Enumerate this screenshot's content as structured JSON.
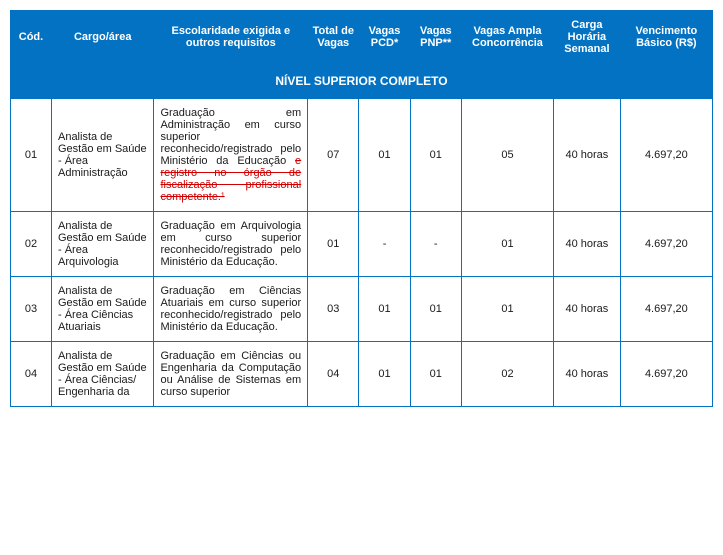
{
  "header_bg": "#0472c2",
  "header_color": "#ffffff",
  "border_color": "#0472c2",
  "strike_color": "#d00000",
  "columns": [
    {
      "label": "Cód.",
      "width": 40
    },
    {
      "label": "Cargo/área",
      "width": 100
    },
    {
      "label": "Escolaridade exigida e outros requisitos",
      "width": 150
    },
    {
      "label": "Total de Vagas",
      "width": 50
    },
    {
      "label": "Vagas PCD*",
      "width": 50
    },
    {
      "label": "Vagas PNP**",
      "width": 50
    },
    {
      "label": "Vagas Ampla Concorrência",
      "width": 90
    },
    {
      "label": "Carga Horária Semanal",
      "width": 65
    },
    {
      "label": "Vencimento Básico (R$)",
      "width": 90
    }
  ],
  "section_title": "NÍVEL SUPERIOR COMPLETO",
  "rows": [
    {
      "cod": "01",
      "cargo": "Analista de Gestão em Saúde - Área Administração",
      "esc_pre": "Graduação em Administração em curso superior reconhecido/registrado pelo Ministério da Educação ",
      "esc_strike": "e registro no órgão de fiscalização profissional competente.¹",
      "total": "07",
      "pcd": "01",
      "pnp": "01",
      "ampla": "05",
      "carga": "40 horas",
      "venc": "4.697,20"
    },
    {
      "cod": "02",
      "cargo": "Analista de Gestão em Saúde - Área Arquivologia",
      "esc_pre": "Graduação em Arquivologia em curso superior reconhecido/registrado pelo Ministério da Educação.",
      "esc_strike": "",
      "total": "01",
      "pcd": "-",
      "pnp": "-",
      "ampla": "01",
      "carga": "40 horas",
      "venc": "4.697,20"
    },
    {
      "cod": "03",
      "cargo": "Analista de Gestão em Saúde - Área Ciências Atuariais",
      "esc_pre": "Graduação em Ciências Atuariais em curso superior reconhecido/registrado pelo Ministério da Educação.",
      "esc_strike": "",
      "total": "03",
      "pcd": "01",
      "pnp": "01",
      "ampla": "01",
      "carga": "40 horas",
      "venc": "4.697,20"
    },
    {
      "cod": "04",
      "cargo": "Analista de Gestão em Saúde - Área Ciências/ Engenharia da",
      "esc_pre": "Graduação em Ciências ou Engenharia da Computação ou Análise de Sistemas em curso superior",
      "esc_strike": "",
      "total": "04",
      "pcd": "01",
      "pnp": "01",
      "ampla": "02",
      "carga": "40 horas",
      "venc": "4.697,20"
    }
  ]
}
